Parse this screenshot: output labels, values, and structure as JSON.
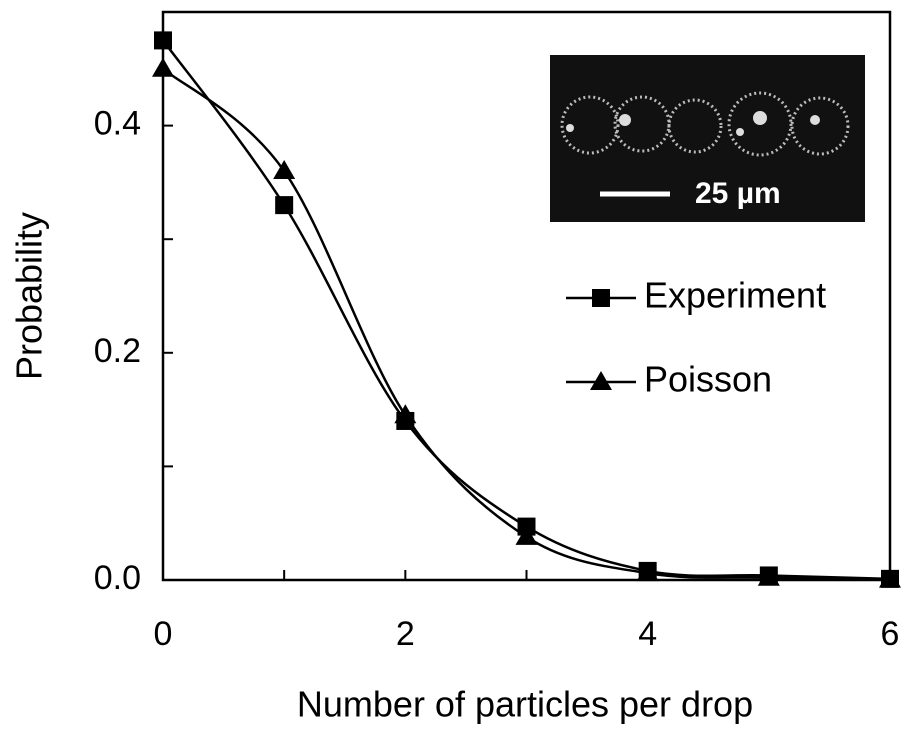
{
  "chart_data": {
    "type": "line",
    "xlabel": "Number of particles per drop",
    "ylabel": "Probability",
    "x": [
      0,
      1,
      2,
      3,
      4,
      5,
      6
    ],
    "series": [
      {
        "name": "Experiment",
        "color": "#000000",
        "marker": "square",
        "values": [
          0.475,
          0.33,
          0.14,
          0.047,
          0.008,
          0.004,
          0.001
        ]
      },
      {
        "name": "Poisson",
        "color": "#000000",
        "marker": "triangle",
        "values": [
          0.45,
          0.36,
          0.145,
          0.038,
          0.006,
          0.002,
          0.0003
        ]
      }
    ],
    "xlim": [
      0,
      6
    ],
    "xticks": [
      0,
      2,
      4,
      6
    ],
    "xminorticks": [
      1,
      3,
      5
    ],
    "ylim": [
      0,
      0.5
    ],
    "yticks": [
      {
        "value": 0,
        "label": "0.0"
      },
      0.2,
      0.4
    ],
    "yminorticks": [
      0.1,
      0.3
    ],
    "smooth": true,
    "inset": {
      "scale_label": "25 µm"
    }
  }
}
